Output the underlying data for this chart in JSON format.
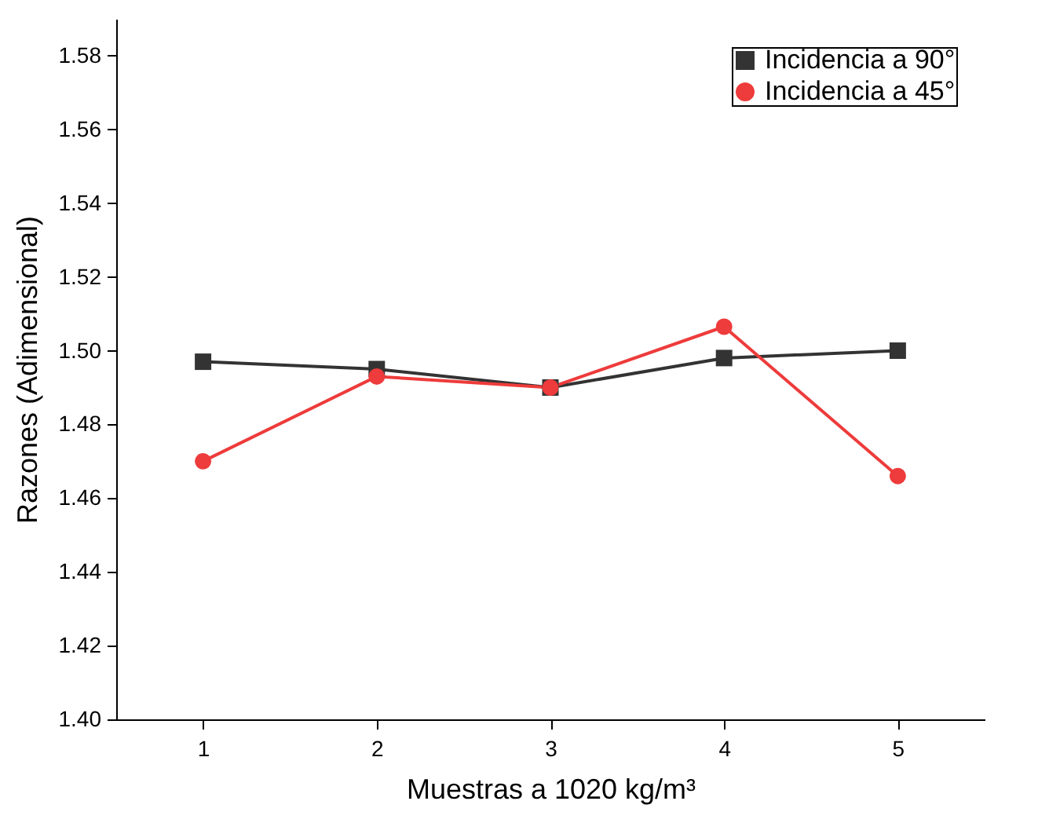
{
  "chart_data": {
    "type": "line",
    "xlabel": "Muestras a 1020 kg/m³",
    "ylabel": "Razones (Adimensional)",
    "x": [
      1,
      2,
      3,
      4,
      5
    ],
    "xlim": [
      0.5,
      5.5
    ],
    "xticks": [
      1,
      2,
      3,
      4,
      5
    ],
    "ylim": [
      1.4,
      1.59
    ],
    "yticks": [
      {
        "value": 1.4,
        "label": "1.40"
      },
      {
        "value": 1.42,
        "label": "1.42"
      },
      {
        "value": 1.44,
        "label": "1.44"
      },
      {
        "value": 1.46,
        "label": "1.46"
      },
      {
        "value": 1.48,
        "label": "1.48"
      },
      {
        "value": 1.5,
        "label": "1.50"
      },
      {
        "value": 1.52,
        "label": "1.52"
      },
      {
        "value": 1.54,
        "label": "1.54"
      },
      {
        "value": 1.56,
        "label": "1.56"
      },
      {
        "value": 1.58,
        "label": "1.58"
      }
    ],
    "grid": false,
    "legend": "top right",
    "series": [
      {
        "name": "Incidencia a 90°",
        "color": "#333333",
        "marker": "square",
        "values": [
          1.497,
          1.495,
          1.49,
          1.498,
          1.5
        ]
      },
      {
        "name": "Incidencia a 45°",
        "color": "#ee3b3b",
        "marker": "circle",
        "values": [
          1.47,
          1.493,
          1.49,
          1.5065,
          1.466
        ]
      }
    ]
  }
}
